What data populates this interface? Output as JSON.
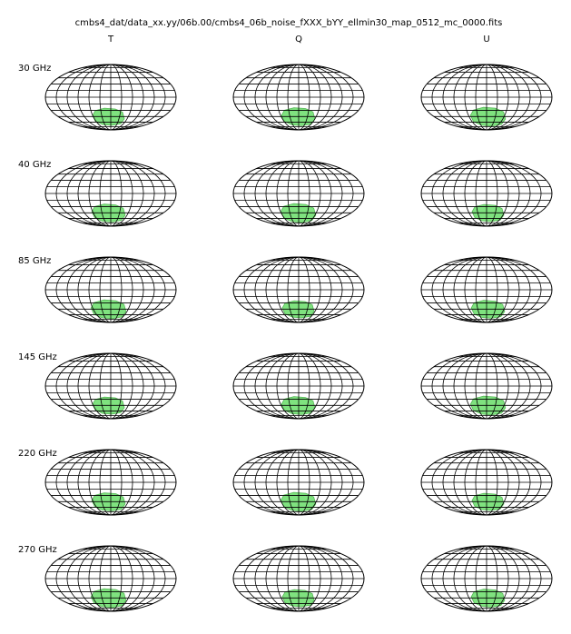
{
  "title": "cmbs4_dat/data_xx.yy/06b.00/cmbs4_06b_noise_fXXX_bYY_ellmin30_map_0512_mc_0000.fits",
  "columns": [
    "T",
    "Q",
    "U"
  ],
  "rows": [
    "30 GHz",
    "40 GHz",
    "85 GHz",
    "145 GHz",
    "220 GHz",
    "270 GHz"
  ]
}
